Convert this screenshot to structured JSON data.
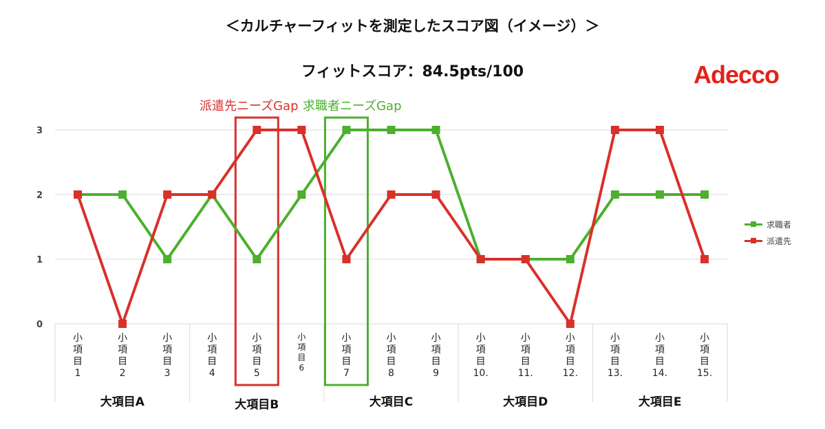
{
  "header": {
    "title": "＜カルチャーフィットを測定したスコア図（イメージ）＞",
    "score": "フィットスコア：84.5pts/100",
    "logo": "Adecco"
  },
  "annotations": {
    "dispatch_gap": "派遣先ニーズGap",
    "seeker_gap": "求職者ニーズGap"
  },
  "colors": {
    "seeker": "#4caf2e",
    "dispatch": "#d9302a"
  },
  "legend": {
    "seeker": "求職者",
    "dispatch": "派遣先"
  },
  "chart_data": {
    "type": "line",
    "categories": [
      "小項目1",
      "小項目2",
      "小項目3",
      "小項目4",
      "小項目5",
      "小項目6",
      "小項目7",
      "小項目8",
      "小項目9",
      "小項目10.",
      "小項目11.",
      "小項目12.",
      "小項目13.",
      "小項目14.",
      "小項目15."
    ],
    "groups": [
      {
        "name": "大項目A",
        "count": 3
      },
      {
        "name": "大項目B",
        "count": 3
      },
      {
        "name": "大項目C",
        "count": 3
      },
      {
        "name": "大項目D",
        "count": 3
      },
      {
        "name": "大項目E",
        "count": 3
      }
    ],
    "series": [
      {
        "name": "求職者",
        "values": [
          2,
          2,
          1,
          2,
          1,
          2,
          3,
          3,
          3,
          1,
          1,
          1,
          2,
          2,
          2
        ]
      },
      {
        "name": "派遣先",
        "values": [
          2,
          0,
          2,
          2,
          3,
          3,
          1,
          2,
          2,
          1,
          1,
          0,
          3,
          3,
          1
        ]
      }
    ],
    "yticks": [
      "0",
      "1",
      "2",
      "3"
    ],
    "ylim": [
      0,
      3
    ],
    "grid": true,
    "legend_position": "right",
    "highlighted_categories": [
      5,
      7
    ]
  }
}
